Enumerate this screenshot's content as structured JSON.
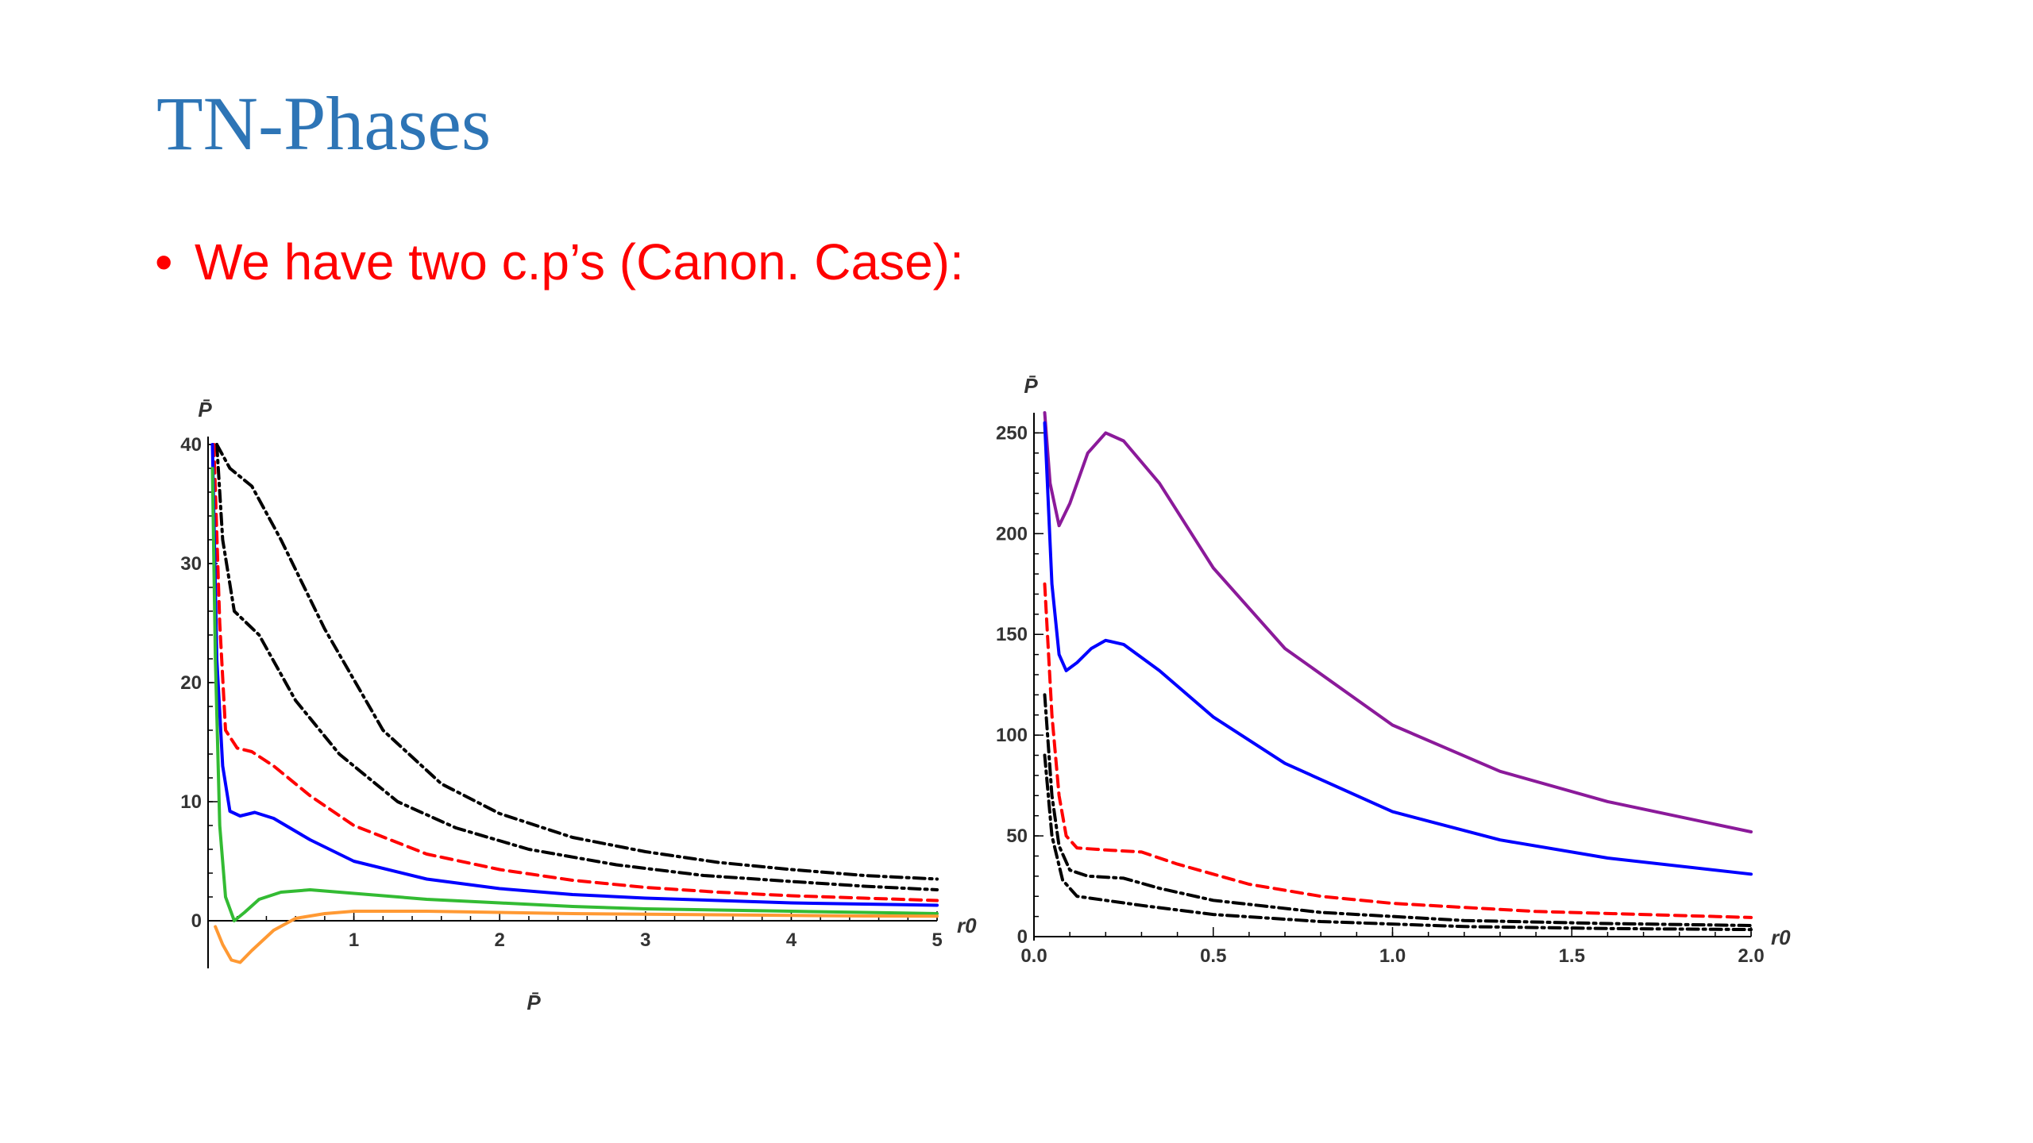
{
  "slide": {
    "title": "TN-Phases",
    "bullet_marker": "•",
    "bullet_text": "We have two c.p’s (Canon. Case):"
  },
  "chart_data": [
    {
      "type": "line",
      "xlabel": "r0",
      "ylabel": "P̄",
      "below_label": "P̄",
      "xlim": [
        0,
        5
      ],
      "ylim": [
        -4,
        40
      ],
      "xticks": [
        1,
        2,
        3,
        4,
        5
      ],
      "yticks": [
        0,
        10,
        20,
        30,
        40
      ],
      "series": [
        {
          "color": "#000000",
          "dash": "dashdot",
          "points": [
            [
              0.06,
              40
            ],
            [
              0.15,
              38
            ],
            [
              0.3,
              36.5
            ],
            [
              0.5,
              32
            ],
            [
              0.8,
              24.5
            ],
            [
              1.2,
              16
            ],
            [
              1.6,
              11.5
            ],
            [
              2,
              9
            ],
            [
              2.5,
              7
            ],
            [
              3,
              5.8
            ],
            [
              3.5,
              4.9
            ],
            [
              4,
              4.3
            ],
            [
              4.5,
              3.8
            ],
            [
              5,
              3.5
            ]
          ]
        },
        {
          "color": "#000000",
          "dash": "dashdot",
          "points": [
            [
              0.06,
              40
            ],
            [
              0.1,
              32
            ],
            [
              0.18,
              26
            ],
            [
              0.35,
              24
            ],
            [
              0.6,
              18.5
            ],
            [
              0.9,
              14
            ],
            [
              1.3,
              10
            ],
            [
              1.7,
              7.8
            ],
            [
              2.2,
              6
            ],
            [
              2.8,
              4.7
            ],
            [
              3.4,
              3.8
            ],
            [
              4,
              3.3
            ],
            [
              4.5,
              2.9
            ],
            [
              5,
              2.6
            ]
          ]
        },
        {
          "color": "#ff0000",
          "dash": "dashed",
          "points": [
            [
              0.04,
              40
            ],
            [
              0.08,
              25
            ],
            [
              0.12,
              16
            ],
            [
              0.2,
              14.5
            ],
            [
              0.3,
              14.2
            ],
            [
              0.45,
              13
            ],
            [
              0.7,
              10.5
            ],
            [
              1,
              8
            ],
            [
              1.5,
              5.6
            ],
            [
              2,
              4.3
            ],
            [
              2.5,
              3.4
            ],
            [
              3,
              2.8
            ],
            [
              3.5,
              2.4
            ],
            [
              4,
              2.1
            ],
            [
              4.5,
              1.9
            ],
            [
              5,
              1.7
            ]
          ]
        },
        {
          "color": "#0000ff",
          "dash": "solid",
          "points": [
            [
              0.03,
              40
            ],
            [
              0.06,
              22
            ],
            [
              0.1,
              13
            ],
            [
              0.15,
              9.2
            ],
            [
              0.22,
              8.8
            ],
            [
              0.32,
              9.1
            ],
            [
              0.45,
              8.6
            ],
            [
              0.7,
              6.8
            ],
            [
              1,
              5
            ],
            [
              1.5,
              3.5
            ],
            [
              2,
              2.7
            ],
            [
              2.5,
              2.2
            ],
            [
              3,
              1.9
            ],
            [
              3.5,
              1.7
            ],
            [
              4,
              1.5
            ],
            [
              4.5,
              1.4
            ],
            [
              5,
              1.3
            ]
          ]
        },
        {
          "color": "#33bb33",
          "dash": "solid",
          "points": [
            [
              0.03,
              38
            ],
            [
              0.05,
              22
            ],
            [
              0.08,
              8
            ],
            [
              0.12,
              2
            ],
            [
              0.18,
              0
            ],
            [
              0.25,
              0.7
            ],
            [
              0.35,
              1.8
            ],
            [
              0.5,
              2.4
            ],
            [
              0.7,
              2.6
            ],
            [
              1,
              2.3
            ],
            [
              1.5,
              1.8
            ],
            [
              2,
              1.5
            ],
            [
              2.5,
              1.2
            ],
            [
              3,
              1
            ],
            [
              3.5,
              0.9
            ],
            [
              4,
              0.8
            ],
            [
              4.5,
              0.7
            ],
            [
              5,
              0.6
            ]
          ]
        },
        {
          "color": "#ff9933",
          "dash": "solid",
          "points": [
            [
              0.05,
              -0.5
            ],
            [
              0.1,
              -2
            ],
            [
              0.16,
              -3.3
            ],
            [
              0.22,
              -3.5
            ],
            [
              0.3,
              -2.5
            ],
            [
              0.45,
              -0.8
            ],
            [
              0.6,
              0.2
            ],
            [
              0.8,
              0.6
            ],
            [
              1,
              0.8
            ],
            [
              1.5,
              0.8
            ],
            [
              2,
              0.7
            ],
            [
              2.5,
              0.6
            ],
            [
              3,
              0.55
            ],
            [
              3.5,
              0.5
            ],
            [
              4,
              0.45
            ],
            [
              4.5,
              0.4
            ],
            [
              5,
              0.38
            ]
          ]
        }
      ]
    },
    {
      "type": "line",
      "xlabel": "r0",
      "ylabel": "P̄",
      "xlim": [
        0,
        2
      ],
      "ylim": [
        0,
        260
      ],
      "xticks": [
        0.0,
        0.5,
        1.0,
        1.5,
        2.0
      ],
      "xtick_labels": [
        "0.0",
        "0.5",
        "1.0",
        "1.5",
        "2.0"
      ],
      "yticks": [
        0,
        50,
        100,
        150,
        200,
        250
      ],
      "series": [
        {
          "color": "#8b1a9a",
          "dash": "solid",
          "points": [
            [
              0.03,
              260
            ],
            [
              0.045,
              225
            ],
            [
              0.07,
              204
            ],
            [
              0.1,
              215
            ],
            [
              0.15,
              240
            ],
            [
              0.2,
              250
            ],
            [
              0.25,
              246
            ],
            [
              0.35,
              225
            ],
            [
              0.5,
              183
            ],
            [
              0.7,
              143
            ],
            [
              1,
              105
            ],
            [
              1.3,
              82
            ],
            [
              1.6,
              67
            ],
            [
              2,
              52
            ]
          ]
        },
        {
          "color": "#0000ff",
          "dash": "solid",
          "points": [
            [
              0.03,
              255
            ],
            [
              0.05,
              175
            ],
            [
              0.07,
              140
            ],
            [
              0.09,
              132
            ],
            [
              0.12,
              136
            ],
            [
              0.16,
              143
            ],
            [
              0.2,
              147
            ],
            [
              0.25,
              145
            ],
            [
              0.35,
              132
            ],
            [
              0.5,
              109
            ],
            [
              0.7,
              86
            ],
            [
              1,
              62
            ],
            [
              1.3,
              48
            ],
            [
              1.6,
              39
            ],
            [
              2,
              31
            ]
          ]
        },
        {
          "color": "#ff0000",
          "dash": "dashed",
          "points": [
            [
              0.03,
              175
            ],
            [
              0.05,
              110
            ],
            [
              0.07,
              70
            ],
            [
              0.09,
              50
            ],
            [
              0.12,
              44
            ],
            [
              0.2,
              43
            ],
            [
              0.3,
              42
            ],
            [
              0.4,
              36
            ],
            [
              0.6,
              26
            ],
            [
              0.8,
              20
            ],
            [
              1,
              16.5
            ],
            [
              1.4,
              12.5
            ],
            [
              2,
              9.5
            ]
          ]
        },
        {
          "color": "#000000",
          "dash": "dashdot",
          "points": [
            [
              0.03,
              120
            ],
            [
              0.05,
              70
            ],
            [
              0.07,
              45
            ],
            [
              0.1,
              33
            ],
            [
              0.15,
              30
            ],
            [
              0.25,
              29
            ],
            [
              0.35,
              24
            ],
            [
              0.5,
              18
            ],
            [
              0.8,
              12
            ],
            [
              1.2,
              8
            ],
            [
              1.6,
              6.5
            ],
            [
              2,
              5.5
            ]
          ]
        },
        {
          "color": "#000000",
          "dash": "dashdot",
          "points": [
            [
              0.03,
              90
            ],
            [
              0.05,
              50
            ],
            [
              0.08,
              28
            ],
            [
              0.12,
              20
            ],
            [
              0.2,
              18
            ],
            [
              0.3,
              15.5
            ],
            [
              0.5,
              11
            ],
            [
              0.8,
              7.5
            ],
            [
              1.2,
              5
            ],
            [
              1.6,
              4
            ],
            [
              2,
              3.5
            ]
          ]
        }
      ]
    }
  ]
}
